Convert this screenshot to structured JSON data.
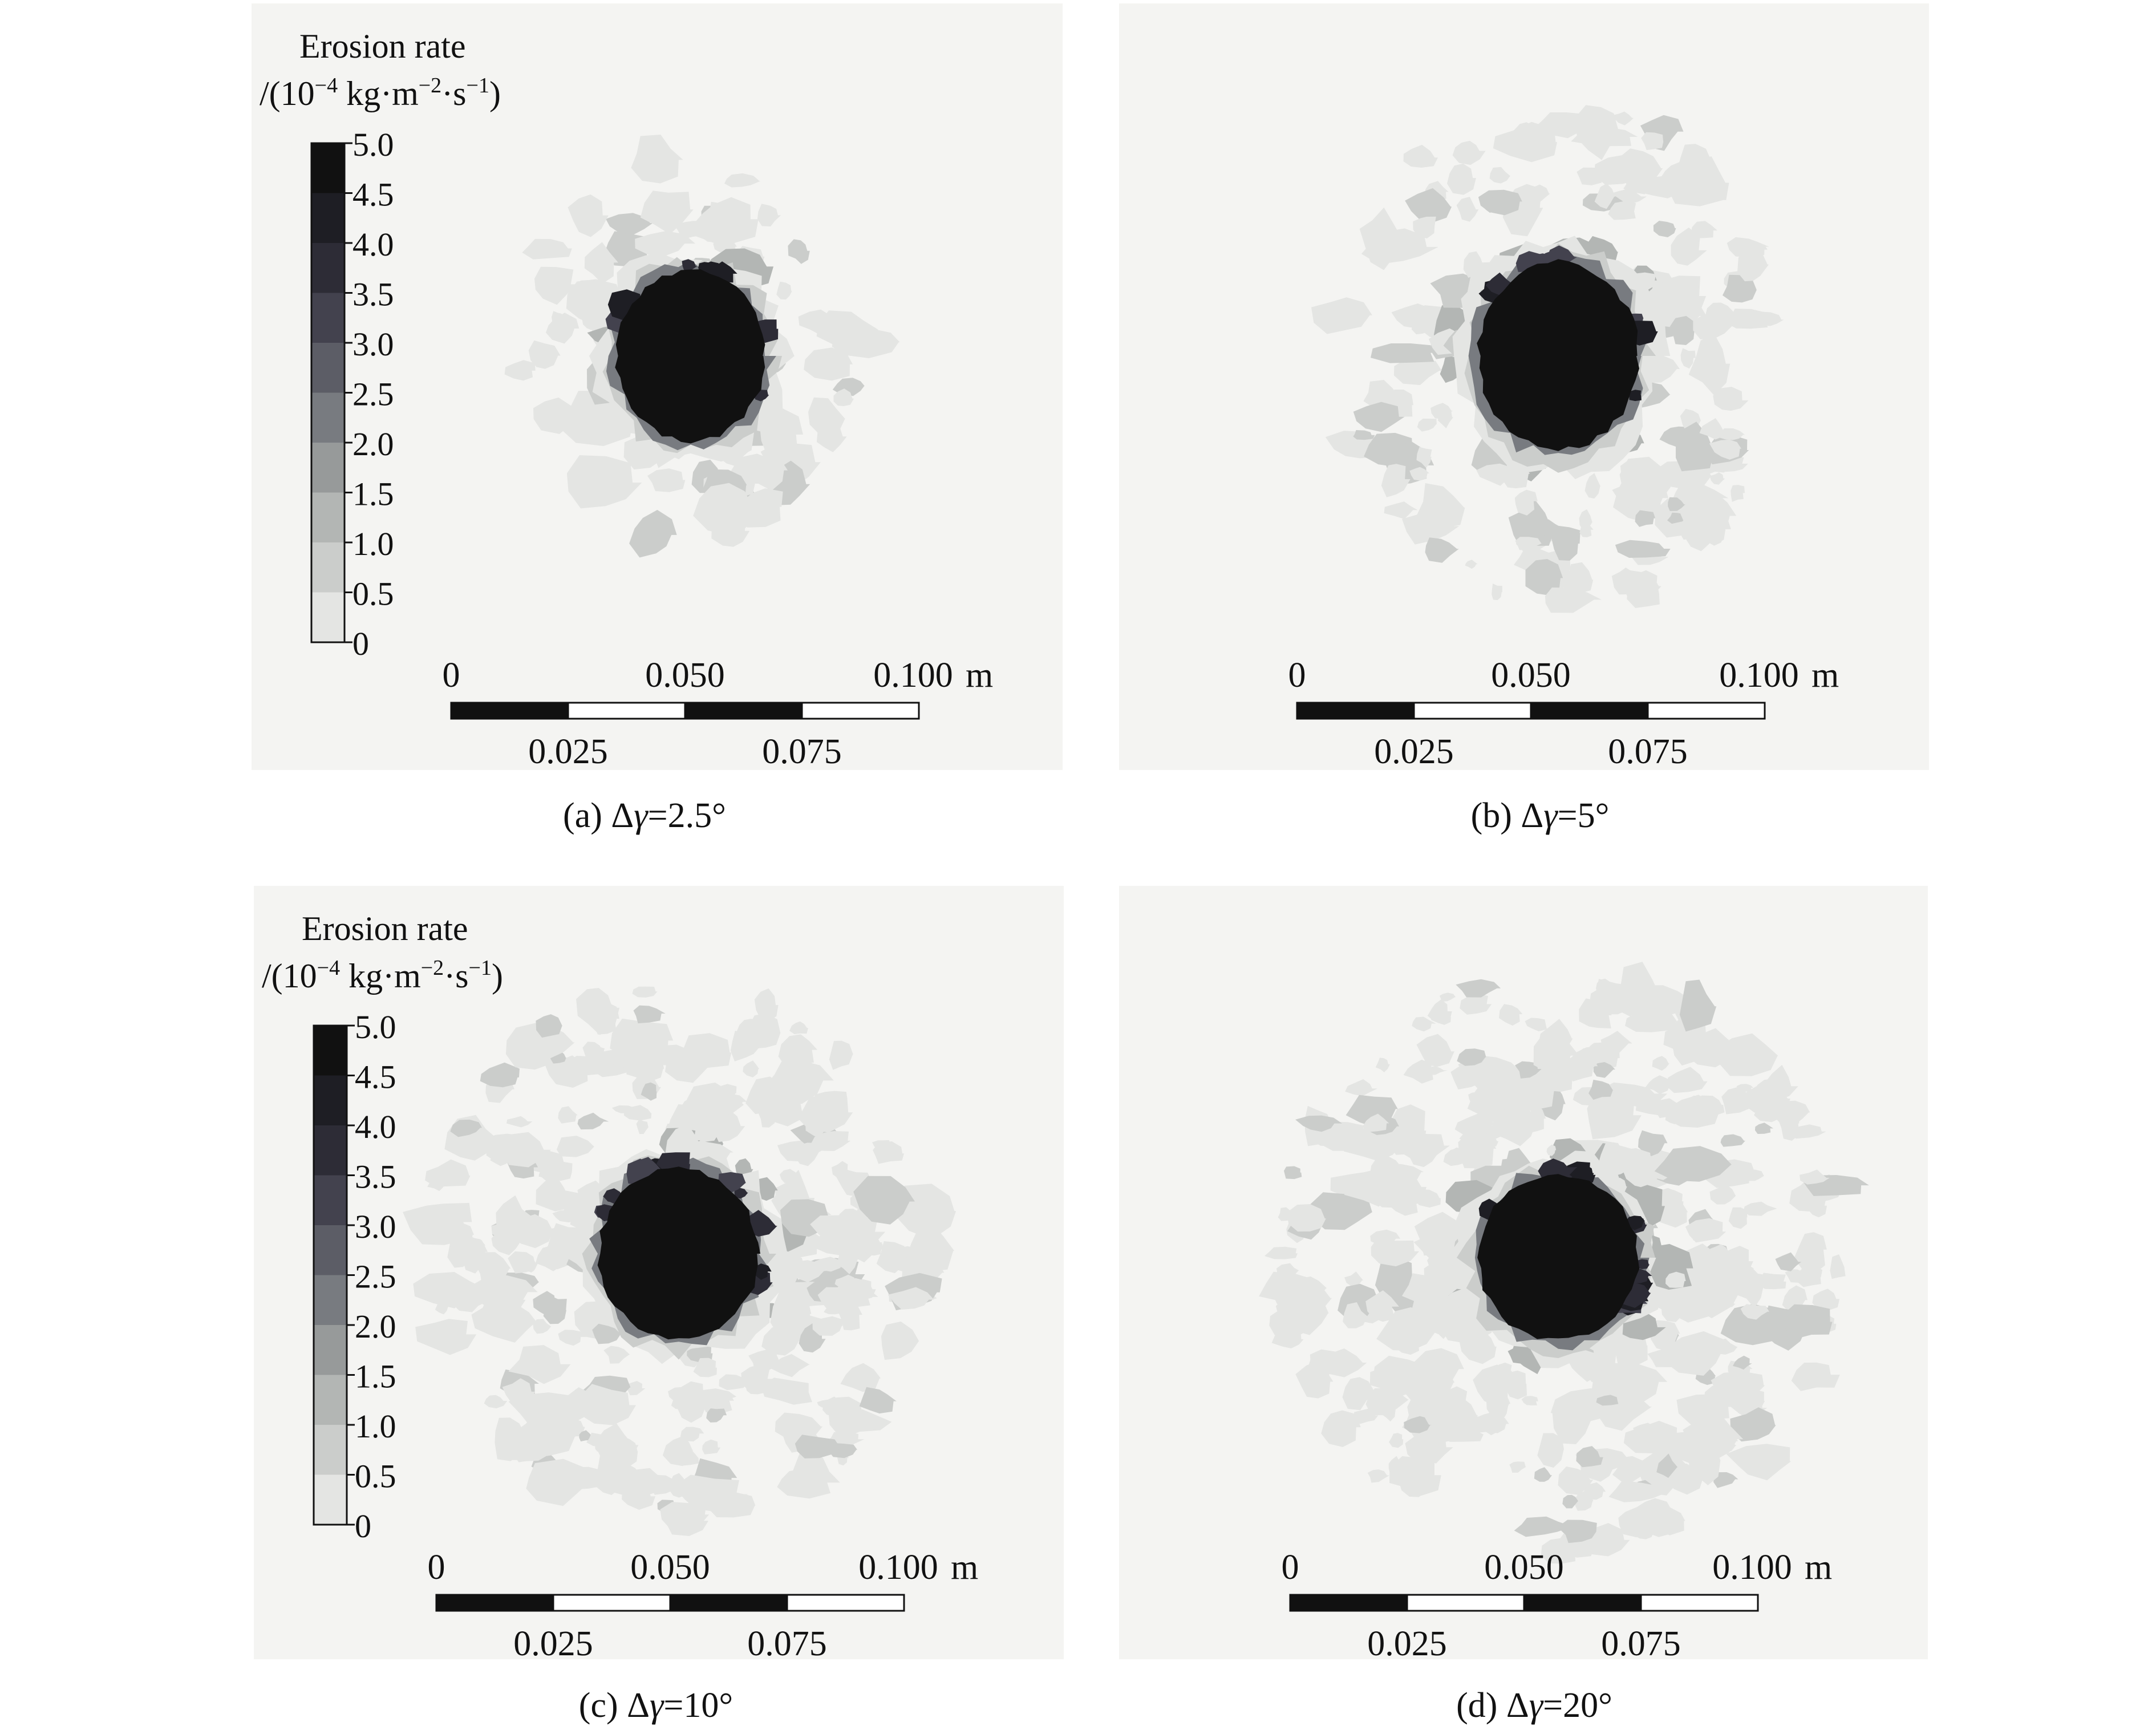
{
  "colorbar": {
    "title_line1": "Erosion rate",
    "title_line2_prefix": "/(10",
    "title_line2_exp1": "−4",
    "title_line2_mid1": " kg·m",
    "title_line2_exp2": "−2",
    "title_line2_mid2": "·s",
    "title_line2_exp3": "−1",
    "title_line2_suffix": ")",
    "ticks": [
      "5.0",
      "4.5",
      "4.0",
      "3.5",
      "3.0",
      "2.5",
      "2.0",
      "1.5",
      "1.0",
      "0.5",
      "0"
    ],
    "levels": [
      {
        "range": "4.5-5.0",
        "color": "#111111"
      },
      {
        "range": "4.0-4.5",
        "color": "#1e1e24"
      },
      {
        "range": "3.5-4.0",
        "color": "#2d2c36"
      },
      {
        "range": "3.0-3.5",
        "color": "#43424e"
      },
      {
        "range": "2.5-3.0",
        "color": "#5c5d66"
      },
      {
        "range": "2.0-2.5",
        "color": "#787b80"
      },
      {
        "range": "1.5-2.0",
        "color": "#979a9a"
      },
      {
        "range": "1.0-1.5",
        "color": "#b3b6b4"
      },
      {
        "range": "0.5-1.0",
        "color": "#cbcdcb"
      },
      {
        "range": "0-0.5",
        "color": "#e4e5e3"
      },
      {
        "range": "below 0",
        "color": "#f4f4f2"
      }
    ]
  },
  "scalebar": {
    "top_labels": [
      "0",
      "0.050",
      "0.100"
    ],
    "unit": "m",
    "bottom_labels": [
      "0.025",
      "0.075"
    ]
  },
  "panels": [
    {
      "id": "a",
      "caption_prefix": "(a) Δ",
      "caption_var": "γ",
      "caption_value": "=2.5°",
      "spread": 2.5
    },
    {
      "id": "b",
      "caption_prefix": "(b) Δ",
      "caption_var": "γ",
      "caption_value": "=5°",
      "spread": 5
    },
    {
      "id": "c",
      "caption_prefix": "(c) Δ",
      "caption_var": "γ",
      "caption_value": "=10°",
      "spread": 10
    },
    {
      "id": "d",
      "caption_prefix": "(d) Δ",
      "caption_var": "γ",
      "caption_value": "=20°",
      "spread": 20
    }
  ]
}
